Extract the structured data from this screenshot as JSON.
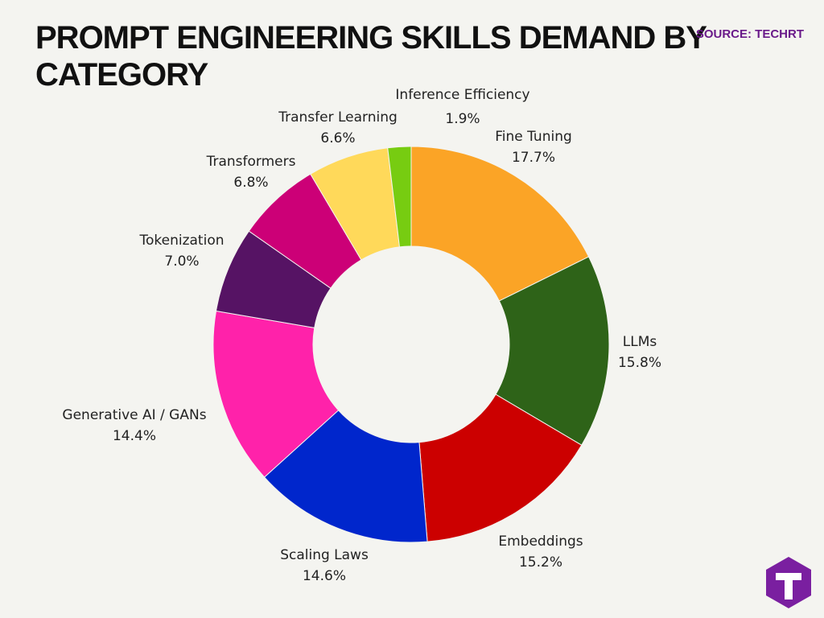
{
  "chart_data": {
    "type": "donut",
    "title": "PROMPT ENGINEERING SKILLS DEMAND BY CATEGORY",
    "source": "SOURCE: TECHRT",
    "categories": [
      "Fine Tuning",
      "LLMs",
      "Embeddings",
      "Scaling Laws",
      "Generative AI / GANs",
      "Tokenization",
      "Transformers",
      "Transfer Learning",
      "Inference Efficiency"
    ],
    "values": [
      17.7,
      15.8,
      15.2,
      14.6,
      14.4,
      7.0,
      6.8,
      6.6,
      1.9
    ],
    "value_labels": [
      "17.7%",
      "15.8%",
      "15.2%",
      "14.6%",
      "14.4%",
      "7.0%",
      "6.8%",
      "6.6%",
      "1.9%"
    ],
    "colors": [
      "#fba426",
      "#2e6318",
      "#cc0000",
      "#0026cc",
      "#ff22aa",
      "#561364",
      "#cc0077",
      "#ffd95a",
      "#77cc11"
    ]
  }
}
